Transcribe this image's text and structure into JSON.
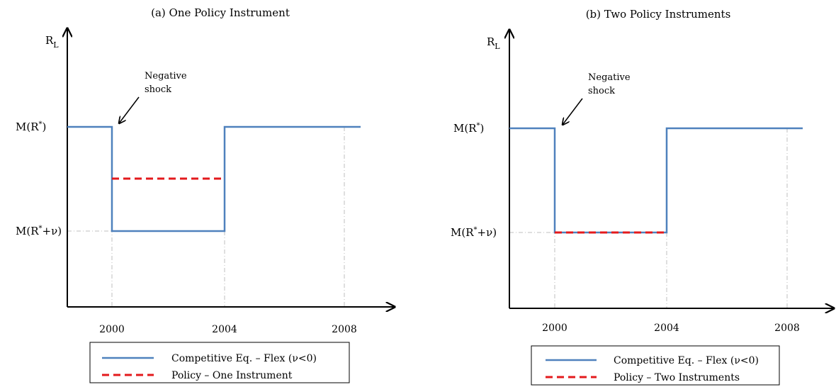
{
  "chart_data": [
    {
      "type": "line",
      "title": "(a) One Policy Instrument",
      "ylabel": "R_L",
      "y_tick_labels": [
        "M(R*)",
        "M(R*+ν)"
      ],
      "x_tick_labels": [
        "2000",
        "2004",
        "2008"
      ],
      "annotation": [
        "Negative",
        "shock"
      ],
      "grid": "dash-dot guides at tick positions",
      "series": [
        {
          "name": "Competitive Eq. – Flex (ν<0)",
          "color": "#4f81bd",
          "style": "solid",
          "points": [
            [
              1998.5,
              "M(R*)"
            ],
            [
              2000,
              "M(R*)"
            ],
            [
              2000,
              "M(R*+ν)"
            ],
            [
              2004,
              "M(R*+ν)"
            ],
            [
              2004,
              "M(R*)"
            ],
            [
              2008.5,
              "M(R*)"
            ]
          ]
        },
        {
          "name": "Policy – One Instrument",
          "color": "#e31a1c",
          "style": "dashed",
          "points": [
            [
              2000,
              "between M(R*+ν) and M(R*)"
            ],
            [
              2004,
              "between M(R*+ν) and M(R*)"
            ]
          ]
        }
      ],
      "legend_position": "bottom"
    },
    {
      "type": "line",
      "title": "(b) Two Policy Instruments",
      "ylabel": "R_L",
      "y_tick_labels": [
        "M(R*)",
        "M(R*+ν)"
      ],
      "x_tick_labels": [
        "2000",
        "2004",
        "2008"
      ],
      "annotation": [
        "Negative",
        "shock"
      ],
      "grid": "dash-dot guides at tick positions",
      "series": [
        {
          "name": "Competitive Eq. – Flex (ν<0)",
          "color": "#4f81bd",
          "style": "solid",
          "points": [
            [
              1998.5,
              "M(R*)"
            ],
            [
              2000,
              "M(R*)"
            ],
            [
              2000,
              "M(R*+ν)"
            ],
            [
              2004,
              "M(R*+ν)"
            ],
            [
              2004,
              "M(R*)"
            ],
            [
              2008.5,
              "M(R*)"
            ]
          ]
        },
        {
          "name": "Policy – Two Instruments",
          "color": "#e31a1c",
          "style": "dashed",
          "points": [
            [
              2000,
              "M(R*+ν)"
            ],
            [
              2004,
              "M(R*+ν)"
            ]
          ]
        }
      ],
      "legend_position": "bottom"
    }
  ]
}
